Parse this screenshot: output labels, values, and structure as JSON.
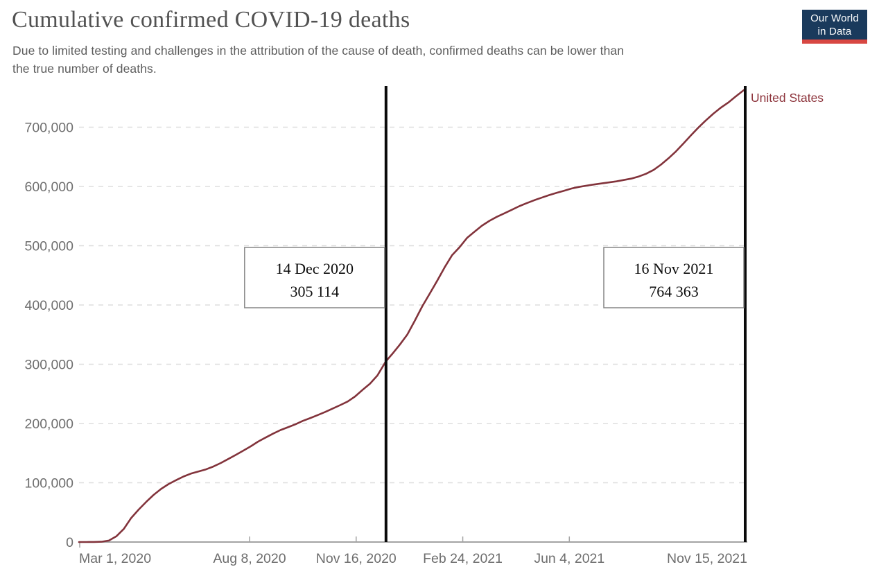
{
  "header": {
    "title": "Cumulative confirmed COVID-19 deaths",
    "subtitle_line1": "Due to limited testing and challenges in the attribution of the cause of death, confirmed deaths can be lower than",
    "subtitle_line2": "the true number of deaths.",
    "logo": {
      "line1": "Our World",
      "line2": "in Data"
    }
  },
  "colors": {
    "line": "#82333b",
    "series_label": "#8d343c",
    "axis_text": "#6e6e6e",
    "grid": "#dedede",
    "axis_line": "#a3a3a3",
    "marker_line": "#0a0a0a",
    "annotation_border": "#858585",
    "annotation_text": "#0d0d0d",
    "logo_bg": "#1a3a5c",
    "logo_accent": "#d84742"
  },
  "chart_data": {
    "type": "line",
    "title": "Cumulative confirmed COVID-19 deaths",
    "xlabel": "",
    "ylabel": "",
    "grid": "horizontal-dashed",
    "xlim": [
      "2020-03-01",
      "2021-11-16"
    ],
    "ylim": [
      0,
      775000
    ],
    "y_ticks": [
      0,
      100000,
      200000,
      300000,
      400000,
      500000,
      600000,
      700000
    ],
    "x_ticks": [
      {
        "date": "2020-03-01",
        "label": "Mar 1, 2020",
        "align": "start",
        "tick": false
      },
      {
        "date": "2020-08-08",
        "label": "Aug 8, 2020",
        "align": "middle",
        "tick": true
      },
      {
        "date": "2020-11-16",
        "label": "Nov 16, 2020",
        "align": "middle",
        "tick": true
      },
      {
        "date": "2021-02-24",
        "label": "Feb 24, 2021",
        "align": "middle",
        "tick": true
      },
      {
        "date": "2021-06-04",
        "label": "Jun 4, 2021",
        "align": "middle",
        "tick": true
      },
      {
        "date": "2021-11-15",
        "label": "Nov 15, 2021",
        "align": "end",
        "tick": false
      }
    ],
    "markers": [
      {
        "date": "2020-12-14",
        "label_date": "14 Dec 2020",
        "label_value": "305 114"
      },
      {
        "date": "2021-11-16",
        "label_date": "16 Nov 2021",
        "label_value": "764 363"
      }
    ],
    "series": [
      {
        "name": "United States",
        "points": [
          [
            "2020-03-01",
            1
          ],
          [
            "2020-03-08",
            22
          ],
          [
            "2020-03-15",
            68
          ],
          [
            "2020-03-22",
            428
          ],
          [
            "2020-03-29",
            2467
          ],
          [
            "2020-04-05",
            9648
          ],
          [
            "2020-04-12",
            22073
          ],
          [
            "2020-04-19",
            40661
          ],
          [
            "2020-04-26",
            54856
          ],
          [
            "2020-05-03",
            67682
          ],
          [
            "2020-05-10",
            79526
          ],
          [
            "2020-05-17",
            89564
          ],
          [
            "2020-05-24",
            97720
          ],
          [
            "2020-05-31",
            104383
          ],
          [
            "2020-06-07",
            110514
          ],
          [
            "2020-06-14",
            115436
          ],
          [
            "2020-06-21",
            119112
          ],
          [
            "2020-06-28",
            122610
          ],
          [
            "2020-07-05",
            127322
          ],
          [
            "2020-07-12",
            133291
          ],
          [
            "2020-07-19",
            140119
          ],
          [
            "2020-07-26",
            146935
          ],
          [
            "2020-08-02",
            154002
          ],
          [
            "2020-08-09",
            161367
          ],
          [
            "2020-08-16",
            169481
          ],
          [
            "2020-08-23",
            176223
          ],
          [
            "2020-08-30",
            182779
          ],
          [
            "2020-09-06",
            188941
          ],
          [
            "2020-09-13",
            193693
          ],
          [
            "2020-09-20",
            198570
          ],
          [
            "2020-09-27",
            204497
          ],
          [
            "2020-10-04",
            209282
          ],
          [
            "2020-10-11",
            214305
          ],
          [
            "2020-10-18",
            219541
          ],
          [
            "2020-10-25",
            225239
          ],
          [
            "2020-11-01",
            230996
          ],
          [
            "2020-11-08",
            237113
          ],
          [
            "2020-11-15",
            245598
          ],
          [
            "2020-11-22",
            256782
          ],
          [
            "2020-11-29",
            267302
          ],
          [
            "2020-12-06",
            281202
          ],
          [
            "2020-12-14",
            305114
          ],
          [
            "2020-12-20",
            317668
          ],
          [
            "2020-12-27",
            333118
          ],
          [
            "2021-01-03",
            350186
          ],
          [
            "2021-01-10",
            373167
          ],
          [
            "2021-01-17",
            397612
          ],
          [
            "2021-01-24",
            419204
          ],
          [
            "2021-01-31",
            440697
          ],
          [
            "2021-02-07",
            463470
          ],
          [
            "2021-02-14",
            484149
          ],
          [
            "2021-02-21",
            497403
          ],
          [
            "2021-02-28",
            513091
          ],
          [
            "2021-03-07",
            523485
          ],
          [
            "2021-03-14",
            533854
          ],
          [
            "2021-03-21",
            541973
          ],
          [
            "2021-03-28",
            548828
          ],
          [
            "2021-04-04",
            554617
          ],
          [
            "2021-04-11",
            560601
          ],
          [
            "2021-04-18",
            566623
          ],
          [
            "2021-04-25",
            571844
          ],
          [
            "2021-05-02",
            576724
          ],
          [
            "2021-05-09",
            581072
          ],
          [
            "2021-05-16",
            585397
          ],
          [
            "2021-05-23",
            589088
          ],
          [
            "2021-05-30",
            592771
          ],
          [
            "2021-06-06",
            596532
          ],
          [
            "2021-06-13",
            599128
          ],
          [
            "2021-06-20",
            601345
          ],
          [
            "2021-06-27",
            603332
          ],
          [
            "2021-07-04",
            605087
          ],
          [
            "2021-07-11",
            606805
          ],
          [
            "2021-07-18",
            608596
          ],
          [
            "2021-07-25",
            610918
          ],
          [
            "2021-08-01",
            613223
          ],
          [
            "2021-08-08",
            616710
          ],
          [
            "2021-08-15",
            621369
          ],
          [
            "2021-08-22",
            627873
          ],
          [
            "2021-08-29",
            636817
          ],
          [
            "2021-09-05",
            647438
          ],
          [
            "2021-09-12",
            659125
          ],
          [
            "2021-09-19",
            672440
          ],
          [
            "2021-09-26",
            686067
          ],
          [
            "2021-10-03",
            699169
          ],
          [
            "2021-10-10",
            711302
          ],
          [
            "2021-10-17",
            722704
          ],
          [
            "2021-10-24",
            732697
          ],
          [
            "2021-10-31",
            741404
          ],
          [
            "2021-11-07",
            751646
          ],
          [
            "2021-11-14",
            761522
          ],
          [
            "2021-11-16",
            764363
          ]
        ]
      }
    ],
    "legend": {
      "position": "end-of-line",
      "entries": [
        "United States"
      ]
    }
  }
}
